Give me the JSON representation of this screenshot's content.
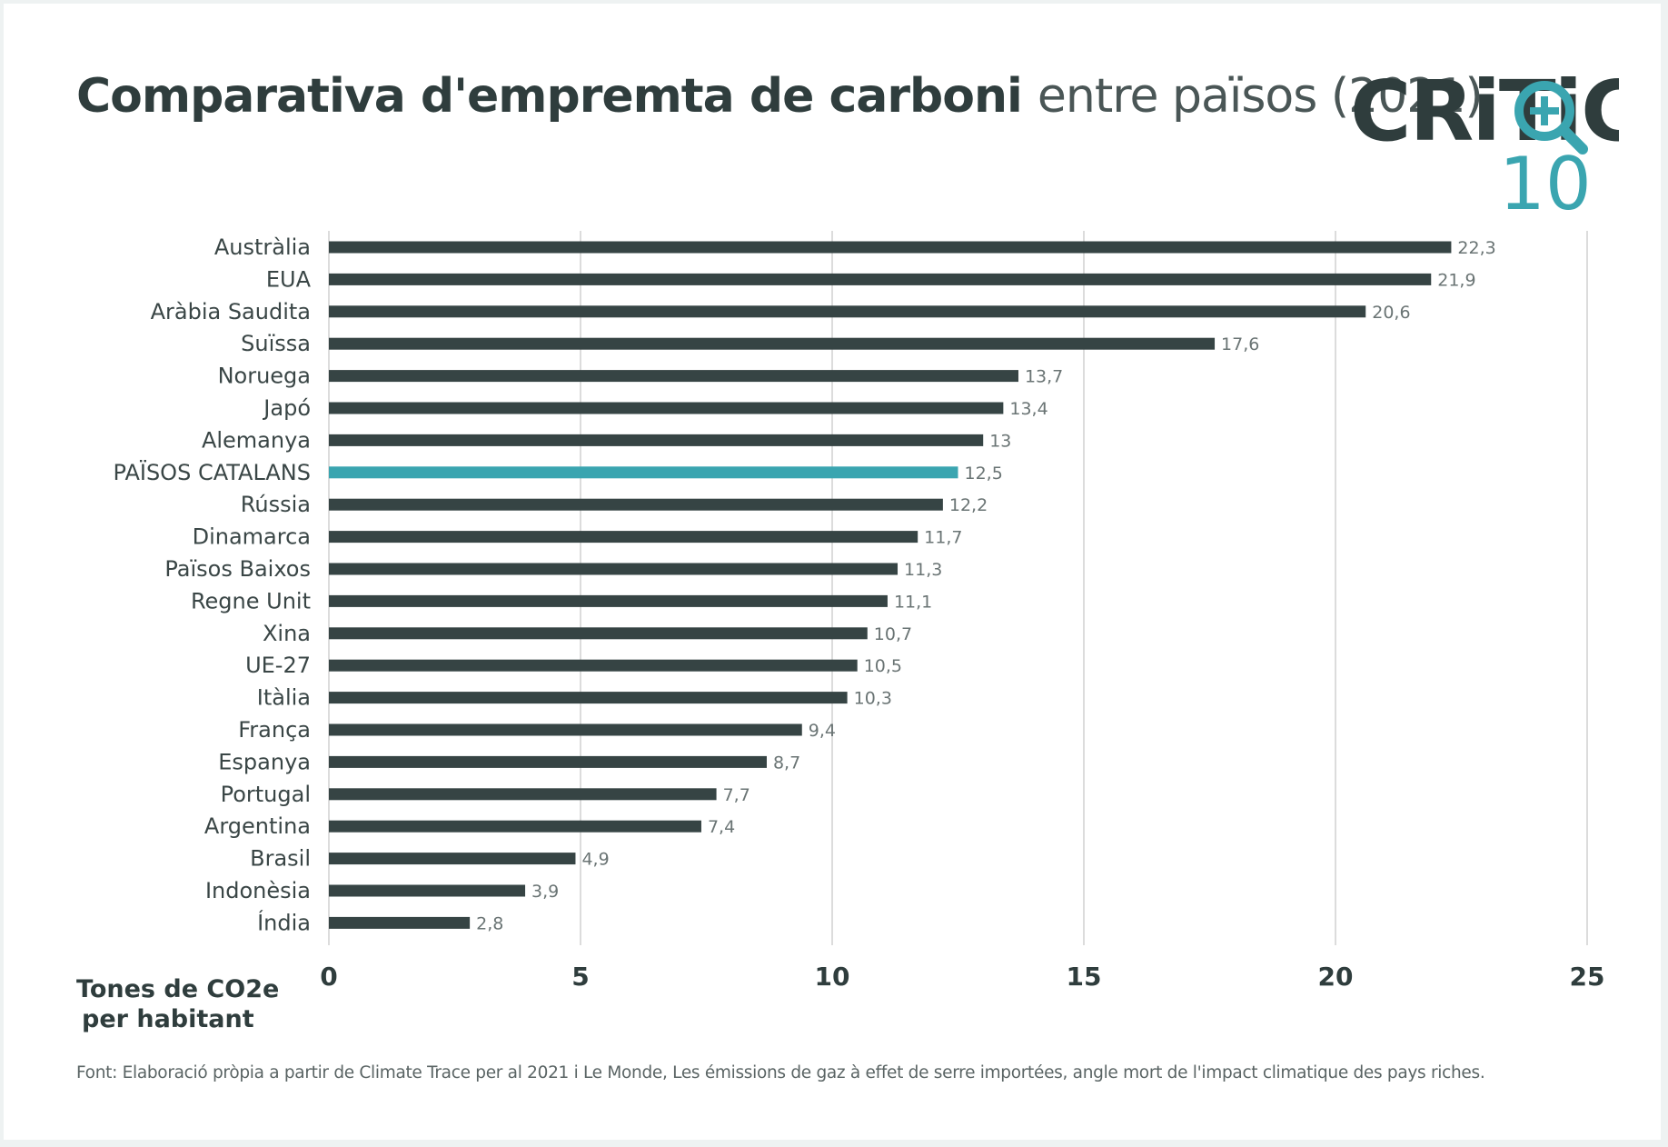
{
  "title_bold": "Comparativa d'empremta de carboni",
  "title_light": "entre països (2021)",
  "logo": {
    "text": "CRiTiC",
    "number": "10",
    "icon": "magnifier-plus-icon",
    "colors": {
      "text": "#2f3d3d",
      "accent": "#3aa5b0"
    }
  },
  "colors": {
    "bar": "#364444",
    "highlight": "#3aa5b0",
    "grid": "#dcdcdc"
  },
  "chart_data": {
    "type": "bar",
    "orientation": "horizontal",
    "title": "Comparativa d'empremta de carboni entre països (2021)",
    "xlabel": [
      "Tones de CO2e",
      "per habitant"
    ],
    "xlim": [
      0,
      25
    ],
    "xticks": [
      0,
      5,
      10,
      15,
      20,
      25
    ],
    "grid": true,
    "categories": [
      "Austràlia",
      "EUA",
      "Aràbia Saudita",
      "Suïssa",
      "Noruega",
      "Japó",
      "Alemanya",
      "PAÏSOS CATALANS",
      "Rússia",
      "Dinamarca",
      "Països Baixos",
      "Regne Unit",
      "Xina",
      "UE-27",
      "Itàlia",
      "França",
      "Espanya",
      "Portugal",
      "Argentina",
      "Brasil",
      "Indonèsia",
      "Índia"
    ],
    "values": [
      22.3,
      21.9,
      20.6,
      17.6,
      13.7,
      13.4,
      13,
      12.5,
      12.2,
      11.7,
      11.3,
      11.1,
      10.7,
      10.5,
      10.3,
      9.4,
      8.7,
      7.7,
      7.4,
      4.9,
      3.9,
      2.8
    ],
    "value_labels": [
      "22,3",
      "21,9",
      "20,6",
      "17,6",
      "13,7",
      "13,4",
      "13",
      "12,5",
      "12,2",
      "11,7",
      "11,3",
      "11,1",
      "10,7",
      "10,5",
      "10,3",
      "9,4",
      "8,7",
      "7,7",
      "7,4",
      "4,9",
      "3,9",
      "2,8"
    ],
    "highlight_category": "PAÏSOS CATALANS"
  },
  "unit_line1": "Tones de CO2e",
  "unit_line2": "per habitant",
  "source": "Font: Elaboració pròpia a partir de Climate Trace per al 2021 i Le Monde, Les émissions de gaz à effet de serre importées, angle mort de l'impact climatique des pays riches."
}
